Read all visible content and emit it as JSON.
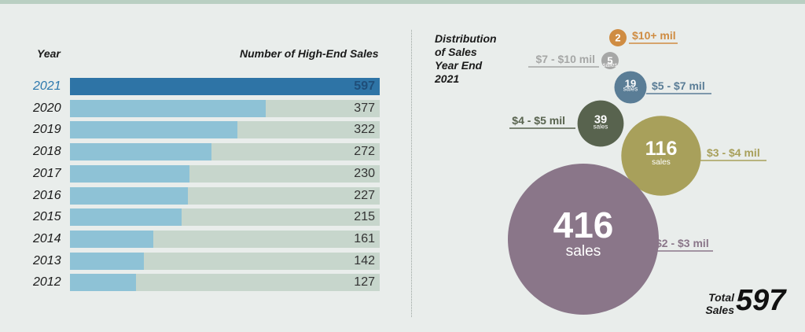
{
  "colors": {
    "background": "#e9edeb",
    "bar_fill": "#8ec2d6",
    "bar_track": "#c7d6cc",
    "bar_highlight": "#2e74a6"
  },
  "bar_chart": {
    "year_header": "Year",
    "sales_header": "Number of High-End Sales"
  },
  "distribution": {
    "title_lines": [
      "Distribution",
      "of Sales",
      "Year End",
      "2021"
    ],
    "unit_label": "sales"
  },
  "total": {
    "label_lines": [
      "Total",
      "Sales"
    ],
    "value": "597"
  },
  "chart_data": [
    {
      "type": "bar",
      "orientation": "horizontal",
      "categories": [
        "2021",
        "2020",
        "2019",
        "2018",
        "2017",
        "2016",
        "2015",
        "2014",
        "2013",
        "2012"
      ],
      "values": [
        597,
        377,
        322,
        272,
        230,
        227,
        215,
        161,
        142,
        127
      ],
      "xlim": [
        0,
        597
      ],
      "highlight": "2021",
      "xlabel": "Number of High-End Sales",
      "ylabel": "Year"
    },
    {
      "type": "bubble",
      "title": "Distribution of Sales Year End 2021",
      "points": [
        {
          "label": "$10+ mil",
          "value": 2,
          "color": "#cf8c42"
        },
        {
          "label": "$7 - $10 mil",
          "value": 5,
          "color": "#a6a7a6"
        },
        {
          "label": "$5 - $7 mil",
          "value": 19,
          "color": "#5a7d96"
        },
        {
          "label": "$4 - $5 mil",
          "value": 39,
          "color": "#58634e"
        },
        {
          "label": "$3 - $4 mil",
          "value": 116,
          "color": "#a8a05b"
        },
        {
          "label": "$2 - $3 mil",
          "value": 416,
          "color": "#8a7689"
        }
      ]
    }
  ]
}
